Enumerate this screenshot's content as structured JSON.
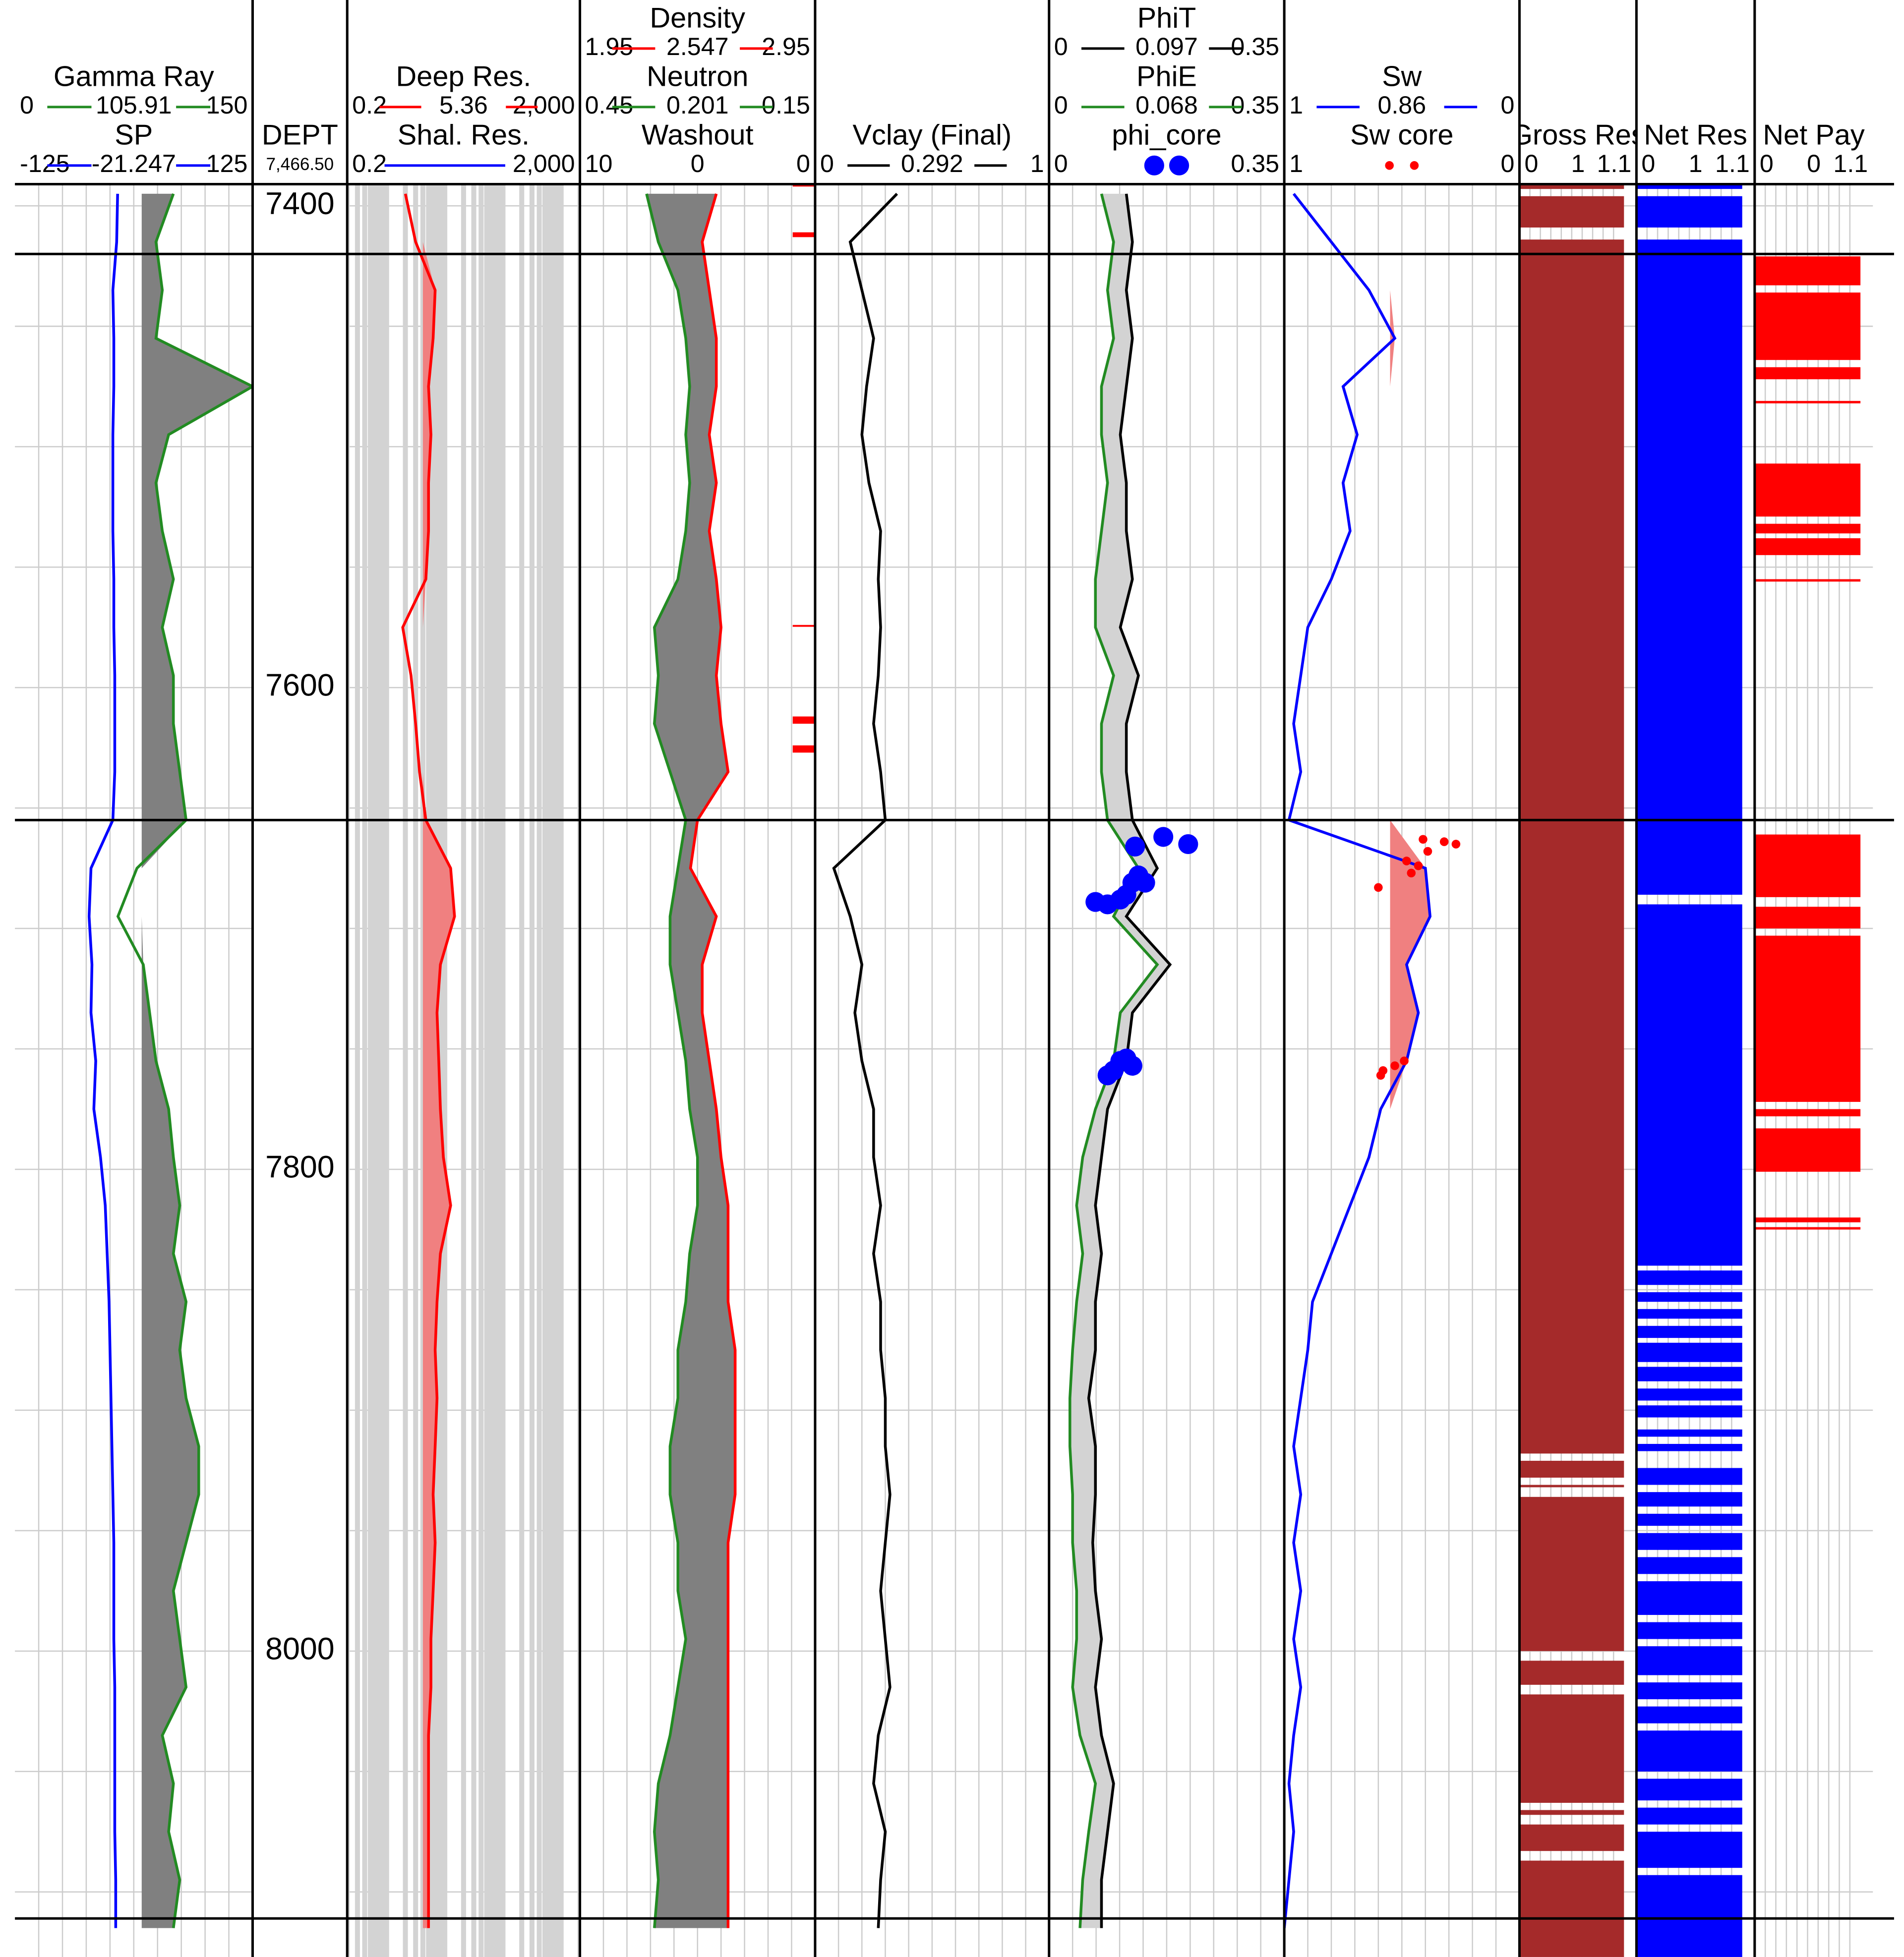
{
  "chart_data": {
    "type": "well_log",
    "depth": {
      "title": "DEPT",
      "readout": {
        "value": 7466.5,
        "label": "7,466.50"
      },
      "ylim": [
        7391,
        8127
      ],
      "yticks": [
        7400,
        7600,
        7800,
        8000
      ],
      "grid_depths": [
        7400,
        7450,
        7500,
        7550,
        7600,
        7650,
        7700,
        7750,
        7800,
        7850,
        7900,
        7950,
        8000,
        8050,
        8100
      ],
      "depths": [
        7395,
        7415,
        7435,
        7455,
        7475,
        7495,
        7515,
        7535,
        7555,
        7575,
        7595,
        7615,
        7635,
        7655,
        7675,
        7695,
        7715,
        7735,
        7755,
        7775,
        7795,
        7815,
        7835,
        7855,
        7875,
        7895,
        7915,
        7935,
        7955,
        7975,
        7995,
        8015,
        8035,
        8055,
        8075,
        8095,
        8115
      ]
    },
    "tops": [
      7420,
      7655,
      8111
    ],
    "tracks": [
      {
        "curves": [
          {
            "name": "Gamma Ray",
            "style": "line",
            "color": "#228b22",
            "xlim": [
              0,
              150
            ],
            "readout": 105.91,
            "fill": {
              "baseline": 80,
              "color": "#808080"
            },
            "values": [
              100,
              89,
              93,
              89,
              150,
              97,
              89,
              93,
              100,
              93,
              100,
              100,
              104,
              108,
              77,
              65,
              81,
              85,
              89,
              97,
              100,
              104,
              100,
              108,
              104,
              108,
              116,
              116,
              108,
              100,
              104,
              108,
              93,
              100,
              97,
              104,
              100
            ]
          },
          {
            "name": "SP",
            "style": "line",
            "color": "#0000ff",
            "xlim": [
              -125,
              125
            ],
            "readout": -21.247,
            "values": [
              -17,
              -18,
              -22,
              -21,
              -21,
              -22,
              -22,
              -22,
              -21,
              -21,
              -20,
              -20,
              -20,
              -22,
              -45,
              -47,
              -44,
              -45,
              -40,
              -42,
              -35,
              -30,
              -28,
              -26,
              -25,
              -24,
              -23,
              -22,
              -21,
              -21,
              -21,
              -20,
              -20,
              -20,
              -20,
              -19,
              -19
            ]
          }
        ]
      },
      {
        "log": true,
        "curves": [
          {
            "name": "Deep Res.",
            "style": "line",
            "color": "#ff0000",
            "xlim": [
              0.2,
              {
                "value": 2000,
                "label": "2,000"
              }
            ],
            "readout": 5.36,
            "fill": {
              "baseline": 4,
              "color": "#f08080"
            },
            "values": [
              2,
              3,
              6.5,
              6,
              5,
              5.5,
              5,
              5,
              4.5,
              1.8,
              2.5,
              3,
              3.5,
              4.5,
              12,
              14,
              8,
              7,
              7.5,
              8,
              9,
              12,
              8,
              7,
              6.5,
              7,
              6.5,
              6,
              6.5,
              6,
              5.5,
              5.5,
              5,
              5,
              5,
              5,
              5
            ]
          },
          {
            "name": "Shal. Res.",
            "style": "line",
            "color": "#0000ff",
            "xlim": [
              0.2,
              {
                "value": 2000,
                "label": "2,000"
              }
            ]
          }
        ]
      },
      {
        "fill_between": "#808080",
        "curves": [
          {
            "name": "Density",
            "style": "line",
            "color": "#ff0000",
            "xlim": [
              1.95,
              2.95
            ],
            "readout": 2.547,
            "values": [
              2.53,
              2.47,
              2.5,
              2.53,
              2.53,
              2.5,
              2.53,
              2.5,
              2.53,
              2.55,
              2.53,
              2.55,
              2.58,
              2.45,
              2.42,
              2.53,
              2.47,
              2.47,
              2.5,
              2.53,
              2.55,
              2.58,
              2.58,
              2.58,
              2.61,
              2.61,
              2.61,
              2.61,
              2.58,
              2.58,
              2.58,
              2.58,
              2.58,
              2.58,
              2.58,
              2.58,
              2.58
            ]
          },
          {
            "name": "Neutron",
            "style": "line",
            "color": "#228b22",
            "xlim": [
              0.45,
              -0.15
            ],
            "readout": 0.201,
            "values": [
              0.28,
              0.25,
              0.2,
              0.18,
              0.17,
              0.18,
              0.17,
              0.18,
              0.2,
              0.26,
              0.25,
              0.26,
              0.22,
              0.18,
              0.2,
              0.22,
              0.22,
              0.2,
              0.18,
              0.17,
              0.15,
              0.15,
              0.17,
              0.18,
              0.2,
              0.2,
              0.22,
              0.22,
              0.2,
              0.2,
              0.18,
              0.2,
              0.22,
              0.25,
              0.26,
              0.25,
              0.26
            ]
          },
          {
            "name": "Washout",
            "style": "flag",
            "color": "#ff0000",
            "xlim": [
              10,
              0
            ],
            "readout": 0,
            "intervals": [
              [
                7391,
                7392
              ],
              [
                7411,
                7413
              ],
              [
                7574,
                7574.5
              ],
              [
                7612,
                7615
              ],
              [
                7624,
                7627
              ]
            ]
          }
        ]
      },
      {
        "curves": [
          {
            "name": "Vclay (Final)",
            "style": "line",
            "color": "#000000",
            "xlim": [
              0,
              1
            ],
            "readout": 0.292,
            "values": [
              0.35,
              0.15,
              0.2,
              0.25,
              0.22,
              0.2,
              0.23,
              0.28,
              0.27,
              0.28,
              0.27,
              0.25,
              0.28,
              0.3,
              0.08,
              0.15,
              0.2,
              0.17,
              0.2,
              0.25,
              0.25,
              0.28,
              0.25,
              0.28,
              0.28,
              0.3,
              0.3,
              0.32,
              0.3,
              0.28,
              0.3,
              0.32,
              0.27,
              0.25,
              0.3,
              0.28,
              0.27
            ]
          }
        ]
      },
      {
        "fill_between": "#d3d3d3",
        "curves": [
          {
            "name": "PhiT",
            "style": "line",
            "color": "#000000",
            "xlim": [
              0,
              0.35
            ],
            "readout": 0.097,
            "values": [
              0.115,
              0.124,
              0.115,
              0.124,
              0.115,
              0.106,
              0.115,
              0.115,
              0.124,
              0.106,
              0.133,
              0.115,
              0.115,
              0.124,
              0.161,
              0.115,
              0.18,
              0.124,
              0.115,
              0.087,
              0.078,
              0.069,
              0.078,
              0.069,
              0.069,
              0.059,
              0.069,
              0.069,
              0.065,
              0.069,
              0.078,
              0.069,
              0.078,
              0.096,
              0.087,
              0.078,
              0.078
            ]
          },
          {
            "name": "PhiE",
            "style": "line",
            "color": "#228b22",
            "xlim": [
              0,
              0.35
            ],
            "readout": 0.068,
            "values": [
              0.078,
              0.096,
              0.087,
              0.096,
              0.078,
              0.078,
              0.087,
              0.078,
              0.069,
              0.069,
              0.096,
              0.078,
              0.078,
              0.087,
              0.133,
              0.096,
              0.161,
              0.106,
              0.096,
              0.069,
              0.05,
              0.041,
              0.05,
              0.041,
              0.035,
              0.031,
              0.031,
              0.035,
              0.035,
              0.041,
              0.041,
              0.035,
              0.046,
              0.069,
              0.059,
              0.05,
              0.046
            ]
          },
          {
            "name": "phi_core",
            "style": "points",
            "color": "#0000ff",
            "marker_size": 8,
            "xlim": [
              0,
              0.35
            ],
            "depths": [
              7662,
              7665,
              7666,
              7678,
              7681,
              7681,
              7686,
              7688,
              7689,
              7690,
              7754,
              7755,
              7757,
              7759,
              7761
            ],
            "values": [
              0.17,
              0.207,
              0.128,
              0.133,
              0.124,
              0.143,
              0.115,
              0.106,
              0.069,
              0.087,
              0.115,
              0.106,
              0.124,
              0.096,
              0.087
            ]
          }
        ]
      },
      {
        "curves": [
          {
            "name": "Sw",
            "style": "line",
            "color": "#0000ff",
            "xlim": [
              1,
              0
            ],
            "readout": 0.86,
            "fill": {
              "baseline": 0.55,
              "color": "#f08080"
            },
            "values": [
              0.96,
              0.8,
              0.64,
              0.53,
              0.75,
              0.69,
              0.75,
              0.72,
              0.8,
              0.9,
              0.93,
              0.96,
              0.93,
              0.98,
              0.4,
              0.38,
              0.48,
              0.43,
              0.48,
              0.59,
              0.64,
              0.72,
              0.8,
              0.88,
              0.9,
              0.93,
              0.96,
              0.93,
              0.96,
              0.93,
              0.96,
              0.93,
              0.96,
              0.98,
              0.96,
              0.98,
              1
            ]
          },
          {
            "name": "Sw core",
            "style": "points",
            "color": "#ff0000",
            "marker_size": 3.5,
            "xlim": [
              1,
              0
            ],
            "depths": [
              7663,
              7664,
              7665,
              7668,
              7672,
              7674,
              7677,
              7683,
              7755,
              7757,
              7759,
              7761
            ],
            "values": [
              0.41,
              0.32,
              0.27,
              0.39,
              0.48,
              0.43,
              0.46,
              0.6,
              0.49,
              0.53,
              0.58,
              0.59
            ]
          }
        ]
      },
      {
        "curves": [
          {
            "name": "Gross Res",
            "style": "flag",
            "color": "#a52a2a",
            "xlim": [
              0,
              1.1
            ],
            "readout": 1,
            "intervals": [
              [
                7391,
                7393
              ],
              [
                7396,
                7409
              ],
              [
                7414,
                7918
              ],
              [
                7921,
                7928
              ],
              [
                7931,
                7932
              ],
              [
                7936,
                8000
              ],
              [
                8004,
                8014
              ],
              [
                8018,
                8063
              ],
              [
                8066,
                8068
              ],
              [
                8072,
                8083
              ],
              [
                8087,
                8127
              ]
            ]
          }
        ]
      },
      {
        "curves": [
          {
            "name": "Net Res",
            "style": "flag",
            "color": "#0000ff",
            "xlim": [
              0,
              1.1
            ],
            "readout": 1,
            "intervals": [
              [
                7391,
                7393
              ],
              [
                7396,
                7409
              ],
              [
                7414,
                7686
              ],
              [
                7690,
                7840
              ],
              [
                7842,
                7848
              ],
              [
                7851,
                7855
              ],
              [
                7858,
                7862
              ],
              [
                7865,
                7870
              ],
              [
                7872,
                7880
              ],
              [
                7882,
                7888
              ],
              [
                7891,
                7896
              ],
              [
                7898,
                7903
              ],
              [
                7908,
                7911
              ],
              [
                7914,
                7917
              ],
              [
                7924,
                7931
              ],
              [
                7934,
                7940
              ],
              [
                7943,
                7948
              ],
              [
                7951,
                7958
              ],
              [
                7961,
                7968
              ],
              [
                7971,
                7985
              ],
              [
                7988,
                7995
              ],
              [
                7998,
                8010
              ],
              [
                8013,
                8020
              ],
              [
                8023,
                8030
              ],
              [
                8033,
                8050
              ],
              [
                8053,
                8062
              ],
              [
                8065,
                8072
              ],
              [
                8075,
                8090
              ],
              [
                8093,
                8127
              ]
            ]
          }
        ]
      },
      {
        "curves": [
          {
            "name": "Net Pay",
            "style": "flag",
            "color": "#ff0000",
            "xlim": [
              0,
              1.1
            ],
            "readout": 0,
            "intervals": [
              [
                7421,
                7433
              ],
              [
                7436,
                7464
              ],
              [
                7467,
                7472
              ],
              [
                7481,
                7482
              ],
              [
                7507,
                7529
              ],
              [
                7532,
                7536
              ],
              [
                7538,
                7545
              ],
              [
                7555,
                7556
              ],
              [
                7661,
                7687
              ],
              [
                7691,
                7700
              ],
              [
                7703,
                7772
              ],
              [
                7775,
                7778
              ],
              [
                7783,
                7801
              ],
              [
                7820,
                7822
              ],
              [
                7824,
                7825
              ]
            ]
          }
        ]
      }
    ]
  }
}
